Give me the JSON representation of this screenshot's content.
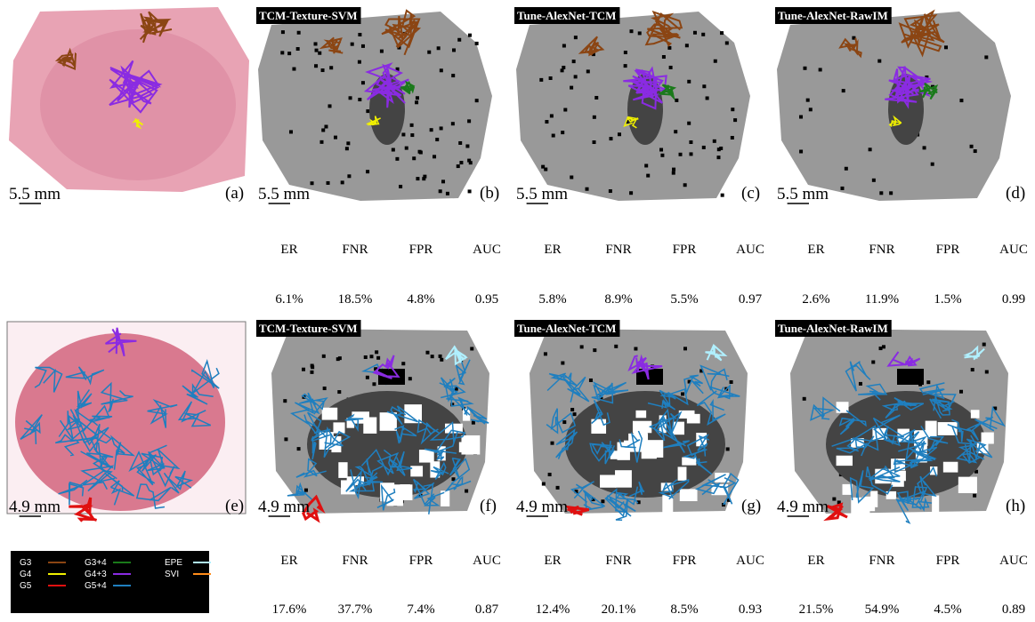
{
  "rows": [
    {
      "panels": [
        {
          "label": "(a)",
          "scale_bar": "5.5 mm"
        },
        {
          "title": "TCM-Texture-SVM",
          "label": "(b)",
          "scale_bar": "5.5 mm"
        },
        {
          "title": "Tune-AlexNet-TCM",
          "label": "(c)",
          "scale_bar": "5.5 mm"
        },
        {
          "title": "Tune-AlexNet-RawIM",
          "label": "(d)",
          "scale_bar": "5.5 mm"
        }
      ],
      "metrics": [
        {
          "headers": [
            "ER",
            "FNR",
            "FPR",
            "AUC"
          ],
          "values": [
            "6.1%",
            "18.5%",
            "4.8%",
            "0.95"
          ]
        },
        {
          "headers": [
            "ER",
            "FNR",
            "FPR",
            "AUC"
          ],
          "values": [
            "5.8%",
            "8.9%",
            "5.5%",
            "0.97"
          ]
        },
        {
          "headers": [
            "ER",
            "FNR",
            "FPR",
            "AUC"
          ],
          "values": [
            "2.6%",
            "11.9%",
            "1.5%",
            "0.99"
          ]
        }
      ]
    },
    {
      "panels": [
        {
          "label": "(e)",
          "scale_bar": "4.9 mm"
        },
        {
          "title": "TCM-Texture-SVM",
          "label": "(f)",
          "scale_bar": "4.9 mm"
        },
        {
          "title": "Tune-AlexNet-TCM",
          "label": "(g)",
          "scale_bar": "4.9 mm"
        },
        {
          "title": "Tune-AlexNet-RawIM",
          "label": "(h)",
          "scale_bar": "4.9 mm"
        }
      ],
      "metrics": [
        {
          "headers": [
            "ER",
            "FNR",
            "FPR",
            "AUC"
          ],
          "values": [
            "17.6%",
            "37.7%",
            "7.4%",
            "0.87"
          ]
        },
        {
          "headers": [
            "ER",
            "FNR",
            "FPR",
            "AUC"
          ],
          "values": [
            "12.4%",
            "20.1%",
            "8.5%",
            "0.93"
          ]
        },
        {
          "headers": [
            "ER",
            "FNR",
            "FPR",
            "AUC"
          ],
          "values": [
            "21.5%",
            "54.9%",
            "4.5%",
            "0.89"
          ]
        }
      ]
    }
  ],
  "legend": {
    "items": [
      {
        "name": "G3",
        "color": "#8b4513"
      },
      {
        "name": "G4",
        "color": "#f0f000"
      },
      {
        "name": "G5",
        "color": "#e01010"
      },
      {
        "name": "G3+4",
        "color": "#1a7a1a"
      },
      {
        "name": "G4+3",
        "color": "#8a2be2"
      },
      {
        "name": "G5+4",
        "color": "#1f7fbf"
      },
      {
        "name": "EPE",
        "color": "#b0f0ff"
      },
      {
        "name": "SVI",
        "color": "#ff8c1a"
      }
    ]
  }
}
